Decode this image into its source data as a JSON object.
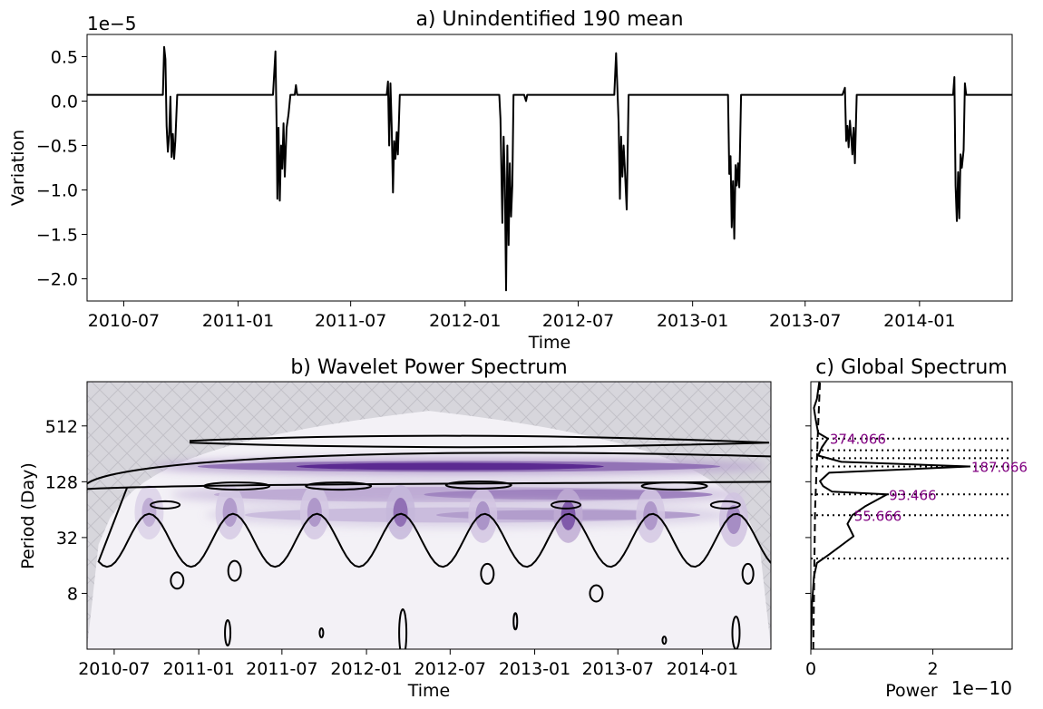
{
  "chart_data": [
    {
      "id": "a",
      "type": "line",
      "title": "a) Unindentified 190 mean",
      "xlabel": "Time",
      "ylabel": "Variation",
      "offset_label": "1e−5",
      "y_scale": 1e-05,
      "xlim": [
        "2010-05-03",
        "2014-05-30"
      ],
      "ylim": [
        -2.25,
        0.75
      ],
      "x_ticks": [
        "2010-07",
        "2011-01",
        "2011-07",
        "2012-01",
        "2012-07",
        "2013-01",
        "2013-07",
        "2014-01"
      ],
      "y_ticks": [
        0.5,
        0.0,
        -0.5,
        -1.0,
        -1.5,
        -2.0
      ],
      "y_tick_labels": [
        "0.5",
        "0.0",
        "−0.5",
        "−1.0",
        "−1.5",
        "−2.0"
      ],
      "baseline": 0.07,
      "line_color": "#000000",
      "series": [
        {
          "points": [
            [
              "2010-05-03",
              0.07
            ],
            [
              "2010-08-20",
              0.07
            ],
            [
              "2010-09-02",
              0.07
            ],
            [
              "2010-09-04",
              0.61
            ],
            [
              "2010-09-06",
              0.47
            ],
            [
              "2010-09-08",
              -0.28
            ],
            [
              "2010-09-10",
              -0.57
            ],
            [
              "2010-09-12",
              -0.38
            ],
            [
              "2010-09-14",
              0.05
            ],
            [
              "2010-09-16",
              -0.63
            ],
            [
              "2010-09-18",
              -0.37
            ],
            [
              "2010-09-20",
              -0.65
            ],
            [
              "2010-09-22",
              -0.45
            ],
            [
              "2010-09-25",
              0.07
            ],
            [
              "2011-02-26",
              0.07
            ],
            [
              "2011-03-02",
              0.56
            ],
            [
              "2011-03-04",
              -0.35
            ],
            [
              "2011-03-05",
              -1.1
            ],
            [
              "2011-03-07",
              -0.3
            ],
            [
              "2011-03-09",
              -1.12
            ],
            [
              "2011-03-11",
              -0.5
            ],
            [
              "2011-03-13",
              -0.76
            ],
            [
              "2011-03-15",
              -0.25
            ],
            [
              "2011-03-17",
              -0.85
            ],
            [
              "2011-03-20",
              -0.3
            ],
            [
              "2011-03-23",
              -0.15
            ],
            [
              "2011-03-26",
              0.07
            ],
            [
              "2011-04-02",
              0.07
            ],
            [
              "2011-04-04",
              0.18
            ],
            [
              "2011-04-06",
              0.07
            ],
            [
              "2011-08-28",
              0.07
            ],
            [
              "2011-08-30",
              0.22
            ],
            [
              "2011-09-01",
              -0.5
            ],
            [
              "2011-09-03",
              0.2
            ],
            [
              "2011-09-05",
              -0.3
            ],
            [
              "2011-09-07",
              -1.03
            ],
            [
              "2011-09-09",
              -0.45
            ],
            [
              "2011-09-11",
              -0.65
            ],
            [
              "2011-09-13",
              -0.35
            ],
            [
              "2011-09-15",
              -0.6
            ],
            [
              "2011-09-18",
              0.07
            ],
            [
              "2012-02-20",
              0.07
            ],
            [
              "2012-02-25",
              0.07
            ],
            [
              "2012-02-27",
              -0.2
            ],
            [
              "2012-03-01",
              -1.37
            ],
            [
              "2012-03-03",
              -0.4
            ],
            [
              "2012-03-05",
              -0.88
            ],
            [
              "2012-03-07",
              -2.13
            ],
            [
              "2012-03-09",
              -0.5
            ],
            [
              "2012-03-11",
              -1.62
            ],
            [
              "2012-03-13",
              -0.7
            ],
            [
              "2012-03-15",
              -1.3
            ],
            [
              "2012-03-17",
              -0.95
            ],
            [
              "2012-03-19",
              0.07
            ],
            [
              "2012-04-05",
              0.07
            ],
            [
              "2012-04-08",
              0.0
            ],
            [
              "2012-04-10",
              0.07
            ],
            [
              "2012-08-28",
              0.07
            ],
            [
              "2012-08-31",
              0.54
            ],
            [
              "2012-09-02",
              0.15
            ],
            [
              "2012-09-04",
              -0.25
            ],
            [
              "2012-09-06",
              -1.1
            ],
            [
              "2012-09-08",
              -0.4
            ],
            [
              "2012-09-10",
              -0.85
            ],
            [
              "2012-09-12",
              -0.5
            ],
            [
              "2012-09-14",
              -0.75
            ],
            [
              "2012-09-17",
              -1.22
            ],
            [
              "2012-09-20",
              0.07
            ],
            [
              "2013-02-24",
              0.07
            ],
            [
              "2013-02-27",
              0.07
            ],
            [
              "2013-03-01",
              -0.82
            ],
            [
              "2013-03-03",
              -0.62
            ],
            [
              "2013-03-05",
              -1.42
            ],
            [
              "2013-03-07",
              -0.9
            ],
            [
              "2013-03-09",
              -1.55
            ],
            [
              "2013-03-11",
              -0.72
            ],
            [
              "2013-03-13",
              -0.95
            ],
            [
              "2013-03-15",
              -0.7
            ],
            [
              "2013-03-17",
              -0.97
            ],
            [
              "2013-03-20",
              0.07
            ],
            [
              "2013-08-30",
              0.07
            ],
            [
              "2013-09-03",
              0.15
            ],
            [
              "2013-09-05",
              -0.45
            ],
            [
              "2013-09-07",
              -0.28
            ],
            [
              "2013-09-09",
              -0.52
            ],
            [
              "2013-09-11",
              -0.22
            ],
            [
              "2013-09-13",
              -0.4
            ],
            [
              "2013-09-15",
              -0.6
            ],
            [
              "2013-09-17",
              -0.3
            ],
            [
              "2013-09-19",
              -0.7
            ],
            [
              "2013-09-22",
              0.07
            ],
            [
              "2014-02-24",
              0.07
            ],
            [
              "2014-02-26",
              0.27
            ],
            [
              "2014-02-28",
              -0.95
            ],
            [
              "2014-03-02",
              -1.35
            ],
            [
              "2014-03-04",
              -0.8
            ],
            [
              "2014-03-06",
              -1.32
            ],
            [
              "2014-03-08",
              -0.6
            ],
            [
              "2014-03-10",
              -0.75
            ],
            [
              "2014-03-13",
              -0.55
            ],
            [
              "2014-03-15",
              0.2
            ],
            [
              "2014-03-17",
              0.07
            ],
            [
              "2014-05-30",
              0.07
            ]
          ]
        }
      ]
    },
    {
      "id": "b",
      "type": "heatmap",
      "title": "b) Wavelet Power Spectrum",
      "xlabel": "Time",
      "ylabel": "Period (Day)",
      "y_scale": "log2",
      "xlim": [
        "2010-05-03",
        "2014-05-30"
      ],
      "ylim": [
        2,
        1536
      ],
      "x_ticks": [
        "2010-07",
        "2011-01",
        "2011-07",
        "2012-01",
        "2012-07",
        "2013-01",
        "2013-07",
        "2014-01"
      ],
      "y_ticks": [
        512,
        128,
        32,
        8
      ],
      "y_tick_labels": [
        "512",
        "128",
        "32",
        "8"
      ],
      "colormap": "Purples",
      "cone_color": "#d7d6dc",
      "bands": [
        {
          "period": 187,
          "start": "2010-09-20",
          "end": "2014-05-20",
          "peak": "2012-07-01",
          "level": 1.0
        },
        {
          "period": 93,
          "start": "2010-11-01",
          "end": "2014-04-10",
          "peak": "2013-03-15",
          "level": 0.55
        },
        {
          "period": 56,
          "start": "2011-01-15",
          "end": "2014-03-10",
          "peak": "2013-03-15",
          "level": 0.42
        }
      ],
      "blobs": [
        {
          "date": "2013-03-15",
          "period": 55,
          "level": 0.68
        },
        {
          "date": "2012-03-15",
          "period": 60,
          "level": 0.58
        },
        {
          "date": "2014-03-10",
          "period": 50,
          "level": 0.45
        },
        {
          "date": "2011-03-10",
          "period": 60,
          "level": 0.38
        },
        {
          "date": "2011-09-10",
          "period": 60,
          "level": 0.4
        },
        {
          "date": "2012-09-10",
          "period": 55,
          "level": 0.42
        },
        {
          "date": "2013-09-10",
          "period": 55,
          "level": 0.4
        },
        {
          "date": "2010-09-15",
          "period": 60,
          "level": 0.3
        }
      ],
      "contour_color": "#000000"
    },
    {
      "id": "c",
      "type": "line",
      "title": "c) Global Spectrum",
      "xlabel": "Power",
      "offset_label": "1e−10",
      "xlim": [
        0,
        3.3
      ],
      "x_ticks": [
        0,
        2
      ],
      "x_tick_labels": [
        "0",
        "2"
      ],
      "ylim": [
        2,
        1536
      ],
      "peaks": [
        {
          "label": "374.066",
          "period": 374.066,
          "power": 0.28
        },
        {
          "label": "187.066",
          "period": 187.066,
          "power": 2.6
        },
        {
          "label": "93.466",
          "period": 93.466,
          "power": 1.25
        },
        {
          "label": "55.666",
          "period": 55.666,
          "power": 0.68
        }
      ],
      "peak_label_color": "#800080",
      "dotted_levels": [
        374.066,
        280,
        230,
        187.066,
        93.466,
        55.666,
        19
      ],
      "series": [
        {
          "points": [
            [
              0.0,
              2
            ],
            [
              0.02,
              6
            ],
            [
              0.05,
              12
            ],
            [
              0.1,
              17
            ],
            [
              0.3,
              21
            ],
            [
              0.7,
              33
            ],
            [
              0.6,
              45
            ],
            [
              0.68,
              55.666
            ],
            [
              0.9,
              70
            ],
            [
              1.25,
              93.466
            ],
            [
              0.35,
              100
            ],
            [
              0.2,
              115
            ],
            [
              0.15,
              130
            ],
            [
              0.3,
              160
            ],
            [
              2.6,
              187.066
            ],
            [
              0.5,
              210
            ],
            [
              0.12,
              245
            ],
            [
              0.18,
              300
            ],
            [
              0.28,
              374.066
            ],
            [
              0.12,
              430
            ],
            [
              0.08,
              600
            ],
            [
              0.05,
              800
            ],
            [
              0.1,
              1000
            ],
            [
              0.14,
              1536
            ]
          ],
          "style": "solid"
        },
        {
          "points": [
            [
              0.04,
              2
            ],
            [
              0.07,
              64
            ],
            [
              0.12,
              512
            ],
            [
              0.15,
              1536
            ]
          ],
          "style": "dashed"
        }
      ]
    }
  ]
}
